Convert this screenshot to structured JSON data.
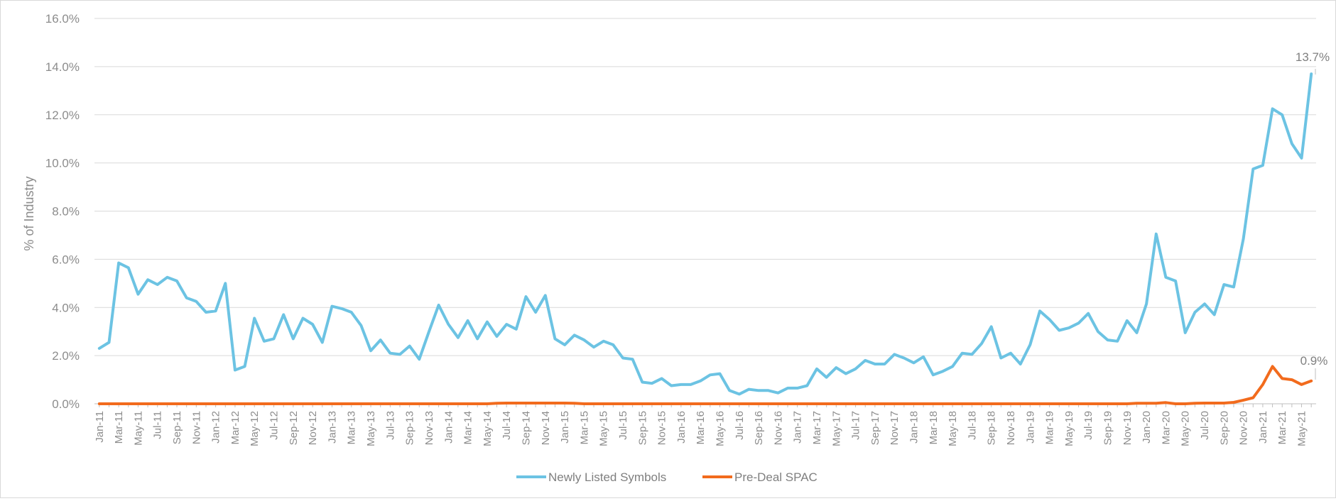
{
  "chart_data": {
    "type": "line",
    "title": "",
    "xlabel": "",
    "ylabel": "% of Industry",
    "ylim": [
      0,
      16
    ],
    "yticks": [
      "0.0%",
      "2.0%",
      "4.0%",
      "6.0%",
      "8.0%",
      "10.0%",
      "12.0%",
      "14.0%",
      "16.0%"
    ],
    "grid": "horizontal",
    "legend": "bottom-center",
    "x_tick_labels": [
      "Jan-11",
      "Mar-11",
      "May-11",
      "Jul-11",
      "Sep-11",
      "Nov-11",
      "Jan-12",
      "Mar-12",
      "May-12",
      "Jul-12",
      "Sep-12",
      "Nov-12",
      "Jan-13",
      "Mar-13",
      "May-13",
      "Jul-13",
      "Sep-13",
      "Nov-13",
      "Jan-14",
      "Mar-14",
      "May-14",
      "Jul-14",
      "Sep-14",
      "Nov-14",
      "Jan-15",
      "Mar-15",
      "May-15",
      "Jul-15",
      "Sep-15",
      "Nov-15",
      "Jan-16",
      "Mar-16",
      "May-16",
      "Jul-16",
      "Sep-16",
      "Nov-16",
      "Jan-17",
      "Mar-17",
      "May-17",
      "Jul-17",
      "Sep-17",
      "Nov-17",
      "Jan-18",
      "Mar-18",
      "May-18",
      "Jul-18",
      "Sep-18",
      "Nov-18",
      "Jan-19",
      "Mar-19",
      "May-19",
      "Jul-19",
      "Sep-19",
      "Nov-19",
      "Jan-20",
      "Mar-20",
      "May-20",
      "Jul-20",
      "Sep-20",
      "Nov-20",
      "Jan-21",
      "Mar-21",
      "May-21"
    ],
    "x": [
      "Jan-11",
      "Feb-11",
      "Mar-11",
      "Apr-11",
      "May-11",
      "Jun-11",
      "Jul-11",
      "Aug-11",
      "Sep-11",
      "Oct-11",
      "Nov-11",
      "Dec-11",
      "Jan-12",
      "Feb-12",
      "Mar-12",
      "Apr-12",
      "May-12",
      "Jun-12",
      "Jul-12",
      "Aug-12",
      "Sep-12",
      "Oct-12",
      "Nov-12",
      "Dec-12",
      "Jan-13",
      "Feb-13",
      "Mar-13",
      "Apr-13",
      "May-13",
      "Jun-13",
      "Jul-13",
      "Aug-13",
      "Sep-13",
      "Oct-13",
      "Nov-13",
      "Dec-13",
      "Jan-14",
      "Feb-14",
      "Mar-14",
      "Apr-14",
      "May-14",
      "Jun-14",
      "Jul-14",
      "Aug-14",
      "Sep-14",
      "Oct-14",
      "Nov-14",
      "Dec-14",
      "Jan-15",
      "Feb-15",
      "Mar-15",
      "Apr-15",
      "May-15",
      "Jun-15",
      "Jul-15",
      "Aug-15",
      "Sep-15",
      "Oct-15",
      "Nov-15",
      "Dec-15",
      "Jan-16",
      "Feb-16",
      "Mar-16",
      "Apr-16",
      "May-16",
      "Jun-16",
      "Jul-16",
      "Aug-16",
      "Sep-16",
      "Oct-16",
      "Nov-16",
      "Dec-16",
      "Jan-17",
      "Feb-17",
      "Mar-17",
      "Apr-17",
      "May-17",
      "Jun-17",
      "Jul-17",
      "Aug-17",
      "Sep-17",
      "Oct-17",
      "Nov-17",
      "Dec-17",
      "Jan-18",
      "Feb-18",
      "Mar-18",
      "Apr-18",
      "May-18",
      "Jun-18",
      "Jul-18",
      "Aug-18",
      "Sep-18",
      "Oct-18",
      "Nov-18",
      "Dec-18",
      "Jan-19",
      "Feb-19",
      "Mar-19",
      "Apr-19",
      "May-19",
      "Jun-19",
      "Jul-19",
      "Aug-19",
      "Sep-19",
      "Oct-19",
      "Nov-19",
      "Dec-19",
      "Jan-20",
      "Feb-20",
      "Mar-20",
      "Apr-20",
      "May-20",
      "Jun-20",
      "Jul-20",
      "Aug-20",
      "Sep-20",
      "Oct-20",
      "Nov-20",
      "Dec-20",
      "Jan-21",
      "Feb-21",
      "Mar-21",
      "Apr-21",
      "May-21",
      "Jun-21"
    ],
    "series": [
      {
        "name": "Newly Listed Symbols",
        "color": "#6cc3e3",
        "values": [
          2.3,
          2.55,
          5.85,
          5.65,
          4.55,
          5.15,
          4.95,
          5.25,
          5.1,
          4.4,
          4.25,
          3.8,
          3.85,
          5.0,
          1.4,
          1.55,
          3.55,
          2.6,
          2.7,
          3.7,
          2.7,
          3.55,
          3.3,
          2.55,
          4.05,
          3.95,
          3.8,
          3.25,
          2.2,
          2.65,
          2.1,
          2.05,
          2.4,
          1.85,
          3.0,
          4.1,
          3.3,
          2.75,
          3.45,
          2.7,
          3.4,
          2.8,
          3.3,
          3.1,
          4.45,
          3.8,
          4.5,
          2.7,
          2.45,
          2.85,
          2.65,
          2.35,
          2.6,
          2.45,
          1.9,
          1.85,
          0.9,
          0.85,
          1.05,
          0.75,
          0.8,
          0.8,
          0.95,
          1.2,
          1.25,
          0.55,
          0.4,
          0.6,
          0.55,
          0.55,
          0.45,
          0.65,
          0.65,
          0.75,
          1.45,
          1.1,
          1.5,
          1.25,
          1.45,
          1.8,
          1.65,
          1.65,
          2.05,
          1.9,
          1.7,
          1.95,
          1.2,
          1.35,
          1.55,
          2.1,
          2.05,
          2.5,
          3.2,
          1.9,
          2.1,
          1.65,
          2.45,
          3.85,
          3.5,
          3.05,
          3.15,
          3.35,
          3.75,
          3.0,
          2.65,
          2.6,
          3.45,
          2.95,
          4.15,
          7.05,
          5.25,
          5.1,
          2.95,
          3.8,
          4.15,
          3.7,
          4.95,
          4.85,
          6.85,
          9.75,
          9.9,
          12.25,
          12.0,
          10.8,
          10.2,
          13.7
        ]
      },
      {
        "name": "Pre-Deal SPAC",
        "color": "#f26b1d",
        "values": [
          0,
          0,
          0,
          0,
          0,
          0,
          0,
          0,
          0,
          0,
          0,
          0,
          0,
          0,
          0,
          0,
          0,
          0,
          0,
          0,
          0,
          0,
          0,
          0,
          0,
          0,
          0,
          0,
          0,
          0,
          0,
          0,
          0,
          0,
          0,
          0,
          0,
          0,
          0,
          0,
          0,
          0.02,
          0.03,
          0.03,
          0.03,
          0.03,
          0.03,
          0.03,
          0.03,
          0.02,
          0,
          0,
          0,
          0,
          0,
          0,
          0,
          0,
          0,
          0,
          0,
          0,
          0,
          0,
          0,
          0,
          0,
          0,
          0,
          0,
          0,
          0,
          0,
          0,
          0,
          0,
          0,
          0,
          0,
          0,
          0,
          0,
          0,
          0,
          0,
          0,
          0,
          0,
          0,
          0,
          0,
          0,
          0,
          0,
          0,
          0,
          0,
          0,
          0,
          0,
          0,
          0,
          0,
          0,
          0,
          0,
          0,
          0.02,
          0.02,
          0.02,
          0.05,
          0.0,
          0.0,
          0.02,
          0.03,
          0.03,
          0.03,
          0.06,
          0.15,
          0.25,
          0.8,
          1.55,
          1.05,
          1.0,
          0.8,
          0.95
        ]
      }
    ],
    "annotations": [
      "13.7%",
      "0.9%"
    ]
  }
}
